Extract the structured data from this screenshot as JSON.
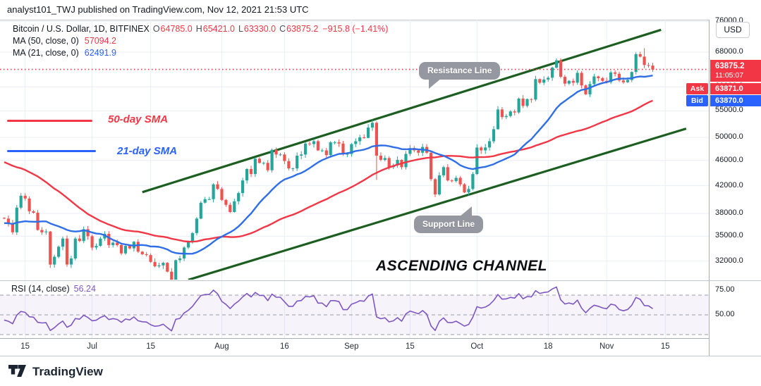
{
  "header": {
    "publish_line": "analyst101_TWJ published on TradingView.com, Nov 12, 2021 21:53 UTC"
  },
  "legend": {
    "title": "Bitcoin / U.S. Dollar, 1D, BITFINEX",
    "o_label": "O",
    "o": "64785.0",
    "h_label": "H",
    "h": "65421.0",
    "l_label": "L",
    "l": "63330.0",
    "c_label": "C",
    "c": "63875.2",
    "change": "−915.8 (−1.41%)",
    "ma50_label": "MA (50, close, 0)",
    "ma50_value": "57094.2",
    "ma21_label": "MA (21, close, 0)",
    "ma21_value": "62491.9"
  },
  "annotations": {
    "sma50_label": "50-day SMA",
    "sma21_label": "21-day SMA",
    "resistance_callout": "Resistance Line",
    "support_callout": "Support Line",
    "channel_title": "ASCENDING CHANNEL"
  },
  "rsi_legend": {
    "label": "RSI (14, close)",
    "value": "56.24"
  },
  "price_scale": {
    "currency_button": "USD",
    "price_label": "63875.2",
    "countdown": "11:05:07",
    "ask_label": "Ask",
    "ask_value": "63871.0",
    "bid_label": "Bid",
    "bid_value": "63870.0"
  },
  "footer": {
    "brand": "TradingView"
  },
  "colors": {
    "up": "#26a69a",
    "down": "#ef5350",
    "ma50": "#f23645",
    "ma21": "#2e6fe8",
    "channel": "#1b5e20",
    "price_line": "#f23645",
    "rsi": "#7e57c2",
    "rsi_band": "rgba(126,87,194,0.07)",
    "grid": "#e9eef6",
    "dash": "#9a9ea8",
    "badge_red": "#f23645",
    "badge_blue": "#2962ff"
  },
  "chart_data": {
    "type": "candlestick",
    "symbol": "Bitcoin / U.S. Dollar",
    "interval": "1D",
    "exchange": "BITFINEX",
    "start_date": "2021-06-10",
    "end_date": "2021-11-12",
    "last": {
      "open": 64785.0,
      "high": 65421.0,
      "low": 63330.0,
      "close": 63875.2,
      "change": -915.8,
      "change_pct": -1.41
    },
    "ma50": 57094.2,
    "ma21": 62491.9,
    "rsi14": 56.24,
    "price_line": 63875.2,
    "y_axis": {
      "scale": "log",
      "currency": "USD",
      "ticks": [
        76000,
        68000,
        60000,
        55000,
        50000,
        46000,
        42000,
        38000,
        35000,
        32000
      ]
    },
    "x_ticks": [
      {
        "label": "15",
        "day": 5
      },
      {
        "label": "Jul",
        "day": 21
      },
      {
        "label": "15",
        "day": 35
      },
      {
        "label": "Aug",
        "day": 52
      },
      {
        "label": "16",
        "day": 67
      },
      {
        "label": "Sep",
        "day": 83
      },
      {
        "label": "15",
        "day": 97
      },
      {
        "label": "Oct",
        "day": 113
      },
      {
        "label": "18",
        "day": 130
      },
      {
        "label": "Nov",
        "day": 144
      },
      {
        "label": "15",
        "day": 158
      }
    ],
    "rsi_axis_ticks": [
      75,
      50
    ],
    "rsi_levels": {
      "upper": 70,
      "middle": 50,
      "lower": 30
    },
    "channel": {
      "resistance": {
        "d1": 33,
        "p1": 41030,
        "d2": 157,
        "p2": 73700
      },
      "support": {
        "d1": 44,
        "p1": 29900,
        "d2": 163,
        "p2": 51600
      }
    },
    "warmup_closes": [
      53800,
      51700,
      51100,
      50100,
      49100,
      54000,
      55000,
      54800,
      53500,
      57700,
      57800,
      56600,
      57200,
      53200,
      57400,
      56400,
      57300,
      58800,
      58200,
      55800,
      56700,
      49400,
      49700,
      49800,
      46700,
      46400,
      43500,
      44700,
      42900,
      40600,
      37300,
      37500,
      34700,
      38800,
      38300,
      39200,
      38500,
      35700,
      34600,
      35600,
      37300,
      36700,
      37600,
      39200,
      36800,
      35500,
      35800,
      33500,
      33400,
      37400
    ],
    "closes": [
      37300,
      36700,
      35500,
      38800,
      40500,
      40100,
      38300,
      38100,
      35800,
      35500,
      35600,
      31600,
      32500,
      33700,
      34700,
      31600,
      32300,
      34700,
      34400,
      35900,
      35000,
      33600,
      33800,
      34700,
      35300,
      33900,
      34200,
      33900,
      32900,
      33800,
      33500,
      34300,
      33100,
      32800,
      32700,
      31900,
      31400,
      31500,
      31800,
      30800,
      29800,
      32100,
      32300,
      33600,
      34300,
      35400,
      37300,
      39500,
      40000,
      40000,
      42200,
      41500,
      39900,
      39200,
      38200,
      39700,
      40900,
      42800,
      44600,
      43800,
      46300,
      45600,
      45600,
      44400,
      47800,
      47000,
      47000,
      45900,
      44700,
      44700,
      46800,
      47000,
      48900,
      48800,
      49300,
      47700,
      47700,
      46900,
      49100,
      49100,
      48900,
      47100,
      47100,
      48800,
      49300,
      50000,
      49900,
      51800,
      52700,
      46800,
      46100,
      46400,
      44900,
      45200,
      46100,
      44900,
      47100,
      48100,
      47700,
      47300,
      48300,
      47300,
      43000,
      40700,
      43600,
      44900,
      42800,
      42700,
      43200,
      42200,
      41000,
      41500,
      43800,
      48200,
      47700,
      48200,
      49300,
      51500,
      55300,
      53800,
      54000,
      54900,
      54700,
      57500,
      56000,
      57400,
      57300,
      61700,
      60900,
      61600,
      62000,
      64300,
      66000,
      62200,
      60700,
      61300,
      60900,
      63100,
      60300,
      58400,
      60600,
      62300,
      61900,
      61300,
      61000,
      63200,
      62900,
      61400,
      61000,
      61500,
      63300,
      67500,
      66900,
      64900,
      64800,
      63875.2
    ],
    "special_wicks": {
      "40": {
        "low": 29296
      },
      "89": {
        "low": 42900
      },
      "153": {
        "high": 68950
      }
    }
  }
}
